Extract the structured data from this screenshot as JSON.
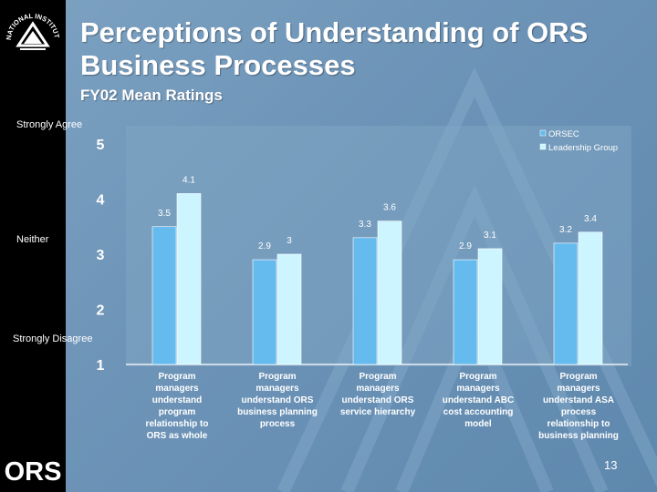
{
  "slide": {
    "title": "Perceptions of Understanding of ORS Business Processes",
    "subtitle": "FY02 Mean Ratings",
    "scale_labels": {
      "strongly_agree": "Strongly Agree",
      "neither": "Neither",
      "strongly_disagree": "Strongly Disagree"
    },
    "page_number": "13",
    "logos": {
      "nih": "NATIONAL INSTITUTES OF HEALTH",
      "ors": "ORS"
    }
  },
  "colors": {
    "background": "#6e95b8",
    "sidebar": "#000000",
    "orsec": "#66bbee",
    "leadership_group": "#ccf5ff",
    "text": "#ffffff"
  },
  "chart_data": {
    "type": "bar",
    "title": "FY02 Mean Ratings",
    "xlabel": "",
    "ylabel": "",
    "ylim": [
      1,
      5
    ],
    "yticks": [
      1,
      2,
      3,
      4,
      5
    ],
    "grid": false,
    "legend_position": "top-right",
    "categories": [
      "Program managers understand program relationship to ORS as whole",
      "Program managers understand ORS business planning process",
      "Program managers understand ORS service hierarchy",
      "Program managers understand ABC cost accounting model",
      "Program managers understand ASA process relationship to business planning"
    ],
    "series": [
      {
        "name": "ORSEC",
        "values": [
          3.5,
          2.9,
          3.3,
          2.9,
          3.2
        ],
        "labels": [
          "3.5",
          "2.9",
          "3.3",
          "2.9",
          "3.2"
        ]
      },
      {
        "name": "Leadership Group",
        "values": [
          4.1,
          3.0,
          3.6,
          3.1,
          3.4
        ],
        "labels": [
          "4.1",
          "3",
          "3.6",
          "3.1",
          "3.4"
        ]
      }
    ]
  }
}
